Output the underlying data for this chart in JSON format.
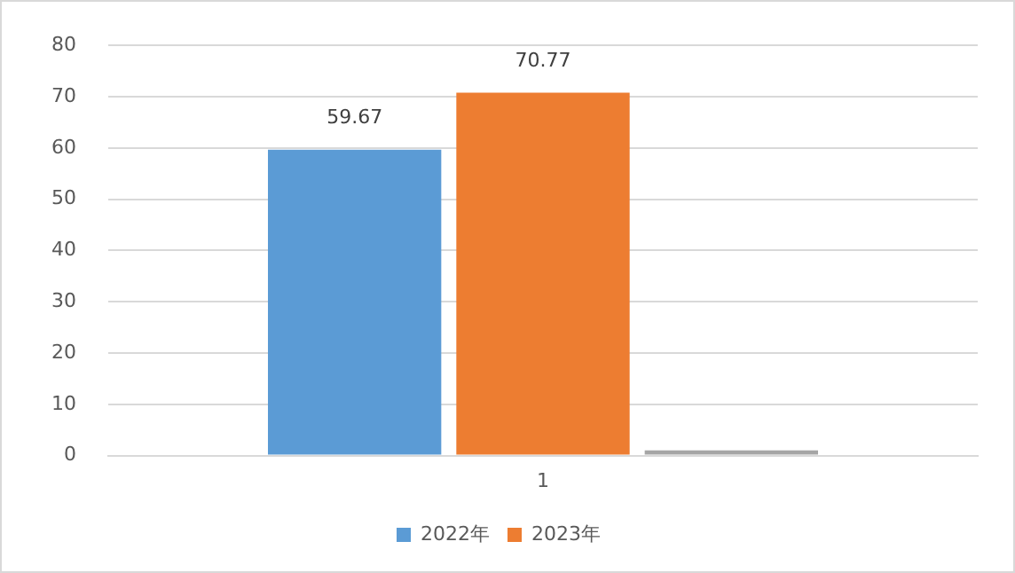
{
  "chart_data": {
    "type": "bar",
    "categories": [
      "1"
    ],
    "series": [
      {
        "name": "2022年",
        "color": "#5b9bd5",
        "values": [
          59.67
        ],
        "value_labels": [
          "59.67"
        ]
      },
      {
        "name": "2023年",
        "color": "#ed7d31",
        "values": [
          70.77
        ],
        "value_labels": [
          "70.77"
        ]
      },
      {
        "color": "#a5a5a5",
        "values": [
          1
        ]
      }
    ],
    "ylim": [
      0,
      80
    ],
    "yticks": [
      0,
      10,
      20,
      30,
      40,
      50,
      60,
      70,
      80
    ],
    "grid": "y",
    "legend": "bottom"
  }
}
